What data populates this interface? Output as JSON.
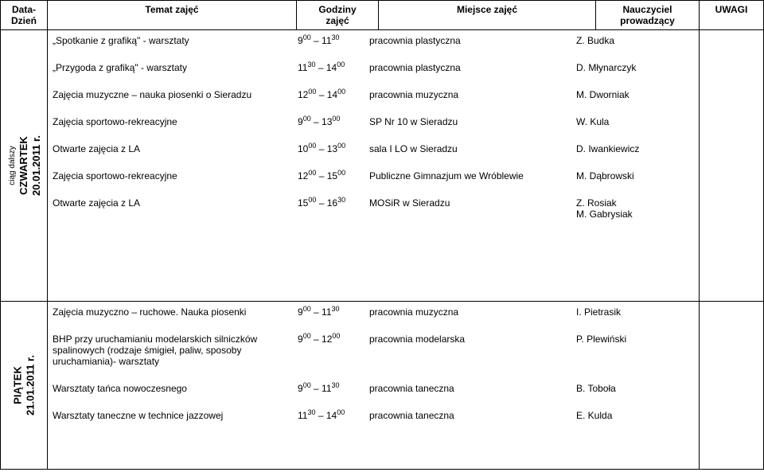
{
  "headers": {
    "date": "Data-\nDzień",
    "subject": "Temat zajęć",
    "hours": "Godziny\nzajęć",
    "place": "Miejsce zajęć",
    "teacher": "Nauczyciel\nprowadzący",
    "notes": "UWAGI"
  },
  "block1": {
    "label_small": "ciąg dalszy",
    "label_big": "CZWARTEK",
    "label_date": "20.01.2011 r.",
    "rows": [
      {
        "subject": "„Spotkanie z grafiką\" - warsztaty",
        "h1": "9",
        "s1": "00",
        "sep": " – ",
        "h2": "11",
        "s2": "30",
        "place": "pracownia plastyczna",
        "teacher": "Z. Budka"
      },
      {
        "subject": "„Przygoda z grafiką\" - warsztaty",
        "h1": "11",
        "s1": "30",
        "sep": " – ",
        "h2": "14",
        "s2": "00",
        "place": "pracownia plastyczna",
        "teacher": "D. Młynarczyk"
      },
      {
        "subject": "Zajęcia muzyczne – nauka piosenki o Sieradzu",
        "h1": "12",
        "s1": "00",
        "sep": " – ",
        "h2": "14",
        "s2": "00",
        "place": "pracownia muzyczna",
        "teacher": "M. Dworniak"
      },
      {
        "subject": "Zajęcia sportowo-rekreacyjne",
        "h1": "9",
        "s1": "00",
        "sep": " – ",
        "h2": "13",
        "s2": "00",
        "place": "SP Nr 10 w Sieradzu",
        "teacher": "W. Kula"
      },
      {
        "subject": "Otwarte zajęcia z LA",
        "h1": "10",
        "s1": "00",
        "sep": " – ",
        "h2": "13",
        "s2": "00",
        "place": "sala I LO w Sieradzu",
        "teacher": "D. Iwankiewicz"
      },
      {
        "subject": "Zajęcia sportowo-rekreacyjne",
        "h1": "12",
        "s1": "00",
        "sep": " – ",
        "h2": "15",
        "s2": "00",
        "place": "Publiczne Gimnazjum we Wróblewie",
        "teacher": "M. Dąbrowski"
      },
      {
        "subject": "Otwarte zajęcia z LA",
        "h1": "15",
        "s1": "00",
        "sep": " – ",
        "h2": "16",
        "s2": "30",
        "place": "MOSiR w Sieradzu",
        "teacher": "Z. Rosiak\nM. Gabrysiak"
      }
    ]
  },
  "block2": {
    "label_big": "PIĄTEK",
    "label_date": "21.01.2011 r.",
    "rows": [
      {
        "subject": "Zajęcia muzyczno – ruchowe. Nauka piosenki",
        "h1": "9",
        "s1": "00",
        "sep": " – ",
        "h2": "11",
        "s2": "30",
        "place": "pracownia muzyczna",
        "teacher": "I. Pietrasik"
      },
      {
        "subject": "BHP przy uruchamianiu modelarskich silniczków spalinowych (rodzaje śmigieł, paliw, sposoby uruchamiania)- warsztaty",
        "h1": "9",
        "s1": "00",
        "sep": " – ",
        "h2": "12",
        "s2": "00",
        "place": "pracownia modelarska",
        "teacher": "P. Plewiński"
      },
      {
        "subject": "Warsztaty tańca nowoczesnego",
        "h1": "9",
        "s1": "00",
        "sep": " – ",
        "h2": "11",
        "s2": "30",
        "place": "pracownia taneczna",
        "teacher": "B. Toboła"
      },
      {
        "subject": "Warsztaty taneczne w technice jazzowej",
        "h1": "11",
        "s1": "30",
        "sep": " – ",
        "h2": "14",
        "s2": "00",
        "place": "pracownia taneczna",
        "teacher": "E. Kulda"
      }
    ]
  }
}
